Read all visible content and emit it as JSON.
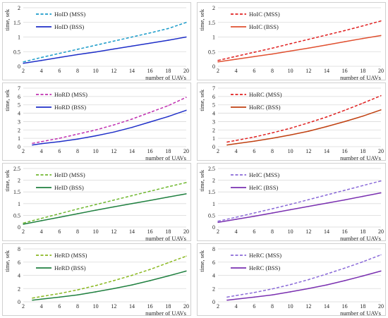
{
  "chart_data": [
    {
      "type": "line",
      "x": [
        2,
        4,
        6,
        8,
        10,
        12,
        14,
        16,
        18,
        20
      ],
      "xlabel": "number of UAVs",
      "ylabel": "time, sek",
      "ylim": [
        0,
        2
      ],
      "yticks": [
        "0",
        "0.5",
        "1",
        "1.5",
        "2"
      ],
      "xticks": [
        "2",
        "4",
        "6",
        "8",
        "10",
        "12",
        "14",
        "16",
        "18",
        "20"
      ],
      "legend": "top-left",
      "grid": true,
      "series": [
        {
          "name": "HoID (MSS)",
          "color": "#1a9bc9",
          "dashed": true,
          "values": [
            0.15,
            0.3,
            0.44,
            0.58,
            0.72,
            0.86,
            1.0,
            1.14,
            1.29,
            1.5
          ]
        },
        {
          "name": "HoID (BSS)",
          "color": "#1f2fc8",
          "dashed": false,
          "values": [
            0.1,
            0.2,
            0.3,
            0.4,
            0.49,
            0.59,
            0.69,
            0.79,
            0.89,
            1.0
          ]
        }
      ]
    },
    {
      "type": "line",
      "x": [
        2,
        4,
        6,
        8,
        10,
        12,
        14,
        16,
        18,
        20
      ],
      "xlabel": "number of UAVs",
      "ylabel": "time, sek",
      "ylim": [
        0,
        2
      ],
      "yticks": [
        "0",
        "0.5",
        "1",
        "1.5",
        "2"
      ],
      "xticks": [
        "2",
        "4",
        "6",
        "8",
        "10",
        "12",
        "14",
        "16",
        "18",
        "20"
      ],
      "legend": "top-left",
      "grid": true,
      "series": [
        {
          "name": "HoIC (MSS)",
          "color": "#e02020",
          "dashed": true,
          "values": [
            0.2,
            0.34,
            0.48,
            0.62,
            0.77,
            0.92,
            1.07,
            1.22,
            1.38,
            1.55
          ]
        },
        {
          "name": "HoIC (BSS)",
          "color": "#e05030",
          "dashed": false,
          "values": [
            0.15,
            0.24,
            0.33,
            0.42,
            0.52,
            0.62,
            0.73,
            0.84,
            0.95,
            1.05
          ]
        }
      ]
    },
    {
      "type": "line",
      "x": [
        3,
        4,
        6,
        8,
        10,
        12,
        14,
        16,
        18,
        20
      ],
      "xlabel": "number of UAVs",
      "ylabel": "time, sek",
      "ylim": [
        0,
        7
      ],
      "yticks": [
        "0",
        "1",
        "2",
        "3",
        "4",
        "5",
        "6",
        "7"
      ],
      "xticks": [
        "2",
        "4",
        "6",
        "8",
        "10",
        "12",
        "14",
        "16",
        "18",
        "20"
      ],
      "legend": "top-left",
      "grid": true,
      "series": [
        {
          "name": "HoRD (MSS)",
          "color": "#c030b0",
          "dashed": true,
          "values": [
            0.4,
            0.6,
            1.0,
            1.5,
            2.0,
            2.6,
            3.3,
            4.1,
            4.9,
            5.9
          ]
        },
        {
          "name": "HoRD (BSS)",
          "color": "#1f2fc8",
          "dashed": false,
          "values": [
            0.2,
            0.35,
            0.6,
            0.9,
            1.3,
            1.75,
            2.3,
            2.95,
            3.6,
            4.35
          ]
        }
      ]
    },
    {
      "type": "line",
      "x": [
        3,
        4,
        6,
        8,
        10,
        12,
        14,
        16,
        18,
        20
      ],
      "xlabel": "number of UAVs",
      "ylabel": "time, sek",
      "ylim": [
        0,
        7
      ],
      "yticks": [
        "0",
        "1",
        "2",
        "3",
        "4",
        "5",
        "6",
        "7"
      ],
      "xticks": [
        "2",
        "4",
        "6",
        "8",
        "10",
        "12",
        "14",
        "16",
        "18",
        "20"
      ],
      "legend": "top-left",
      "grid": true,
      "series": [
        {
          "name": "HoRC (MSS)",
          "color": "#e02020",
          "dashed": true,
          "values": [
            0.55,
            0.75,
            1.15,
            1.65,
            2.2,
            2.85,
            3.55,
            4.35,
            5.2,
            6.1
          ]
        },
        {
          "name": "HoRC (BSS)",
          "color": "#c04010",
          "dashed": false,
          "values": [
            0.2,
            0.35,
            0.65,
            1.0,
            1.4,
            1.85,
            2.4,
            3.0,
            3.65,
            4.4
          ]
        }
      ]
    },
    {
      "type": "line",
      "x": [
        2,
        4,
        6,
        8,
        10,
        12,
        14,
        16,
        18,
        20
      ],
      "xlabel": "number of UAVs",
      "ylabel": "time, sek",
      "ylim": [
        0,
        2.5
      ],
      "yticks": [
        "0",
        "0.5",
        "1",
        "1.5",
        "2",
        "2.5"
      ],
      "xticks": [
        "2",
        "4",
        "6",
        "8",
        "10",
        "12",
        "14",
        "16",
        "18",
        "20"
      ],
      "legend": "top-left",
      "grid": true,
      "series": [
        {
          "name": "HeID (MSS)",
          "color": "#70b830",
          "dashed": true,
          "values": [
            0.17,
            0.37,
            0.57,
            0.77,
            0.96,
            1.15,
            1.34,
            1.53,
            1.72,
            1.9
          ]
        },
        {
          "name": "HeID (BSS)",
          "color": "#208040",
          "dashed": false,
          "values": [
            0.12,
            0.27,
            0.42,
            0.57,
            0.72,
            0.86,
            1.0,
            1.14,
            1.28,
            1.42
          ]
        }
      ]
    },
    {
      "type": "line",
      "x": [
        2,
        4,
        6,
        8,
        10,
        12,
        14,
        16,
        18,
        20
      ],
      "xlabel": "number of UAVs",
      "ylabel": "time, sek",
      "ylim": [
        0,
        2.5
      ],
      "yticks": [
        "0",
        "0.5",
        "1",
        "1.5",
        "2",
        "2.5"
      ],
      "xticks": [
        "2",
        "4",
        "6",
        "8",
        "10",
        "12",
        "14",
        "16",
        "18",
        "20"
      ],
      "legend": "top-left",
      "grid": true,
      "series": [
        {
          "name": "HeIC (MSS)",
          "color": "#8a6ad8",
          "dashed": true,
          "values": [
            0.25,
            0.42,
            0.6,
            0.78,
            0.97,
            1.17,
            1.37,
            1.57,
            1.77,
            1.97
          ]
        },
        {
          "name": "HeIC (BSS)",
          "color": "#7a30b0",
          "dashed": false,
          "values": [
            0.2,
            0.33,
            0.46,
            0.6,
            0.74,
            0.88,
            1.02,
            1.16,
            1.31,
            1.46
          ]
        }
      ]
    },
    {
      "type": "line",
      "x": [
        3,
        4,
        6,
        8,
        10,
        12,
        14,
        16,
        18,
        20
      ],
      "xlabel": "number of UAVs",
      "ylabel": "time, sek",
      "ylim": [
        0,
        8
      ],
      "yticks": [
        "0",
        "2",
        "4",
        "6",
        "8"
      ],
      "xticks": [
        "2",
        "4",
        "6",
        "8",
        "10",
        "12",
        "14",
        "16",
        "18",
        "20"
      ],
      "legend": "top-left",
      "grid": true,
      "series": [
        {
          "name": "HeRD (MSS)",
          "color": "#8ab820",
          "dashed": true,
          "values": [
            0.55,
            0.8,
            1.25,
            1.8,
            2.45,
            3.2,
            4.0,
            4.9,
            5.9,
            6.9
          ]
        },
        {
          "name": "HeRD (BSS)",
          "color": "#208040",
          "dashed": false,
          "values": [
            0.25,
            0.4,
            0.7,
            1.05,
            1.5,
            2.0,
            2.55,
            3.2,
            3.9,
            4.65
          ]
        }
      ]
    },
    {
      "type": "line",
      "x": [
        3,
        4,
        6,
        8,
        10,
        12,
        14,
        16,
        18,
        20
      ],
      "xlabel": "number of UAVs",
      "ylabel": "time, sek",
      "ylim": [
        0,
        8
      ],
      "yticks": [
        "0",
        "2",
        "4",
        "6",
        "8"
      ],
      "xticks": [
        "2",
        "4",
        "6",
        "8",
        "10",
        "12",
        "14",
        "16",
        "18",
        "20"
      ],
      "legend": "top-left",
      "grid": true,
      "series": [
        {
          "name": "HeRC (MSS)",
          "color": "#8a6ad8",
          "dashed": true,
          "values": [
            0.7,
            0.95,
            1.4,
            1.95,
            2.6,
            3.35,
            4.2,
            5.1,
            6.05,
            7.1
          ]
        },
        {
          "name": "HeRC (BSS)",
          "color": "#7a30b0",
          "dashed": false,
          "values": [
            0.25,
            0.4,
            0.7,
            1.05,
            1.5,
            2.0,
            2.55,
            3.2,
            3.9,
            4.65
          ]
        }
      ]
    }
  ]
}
